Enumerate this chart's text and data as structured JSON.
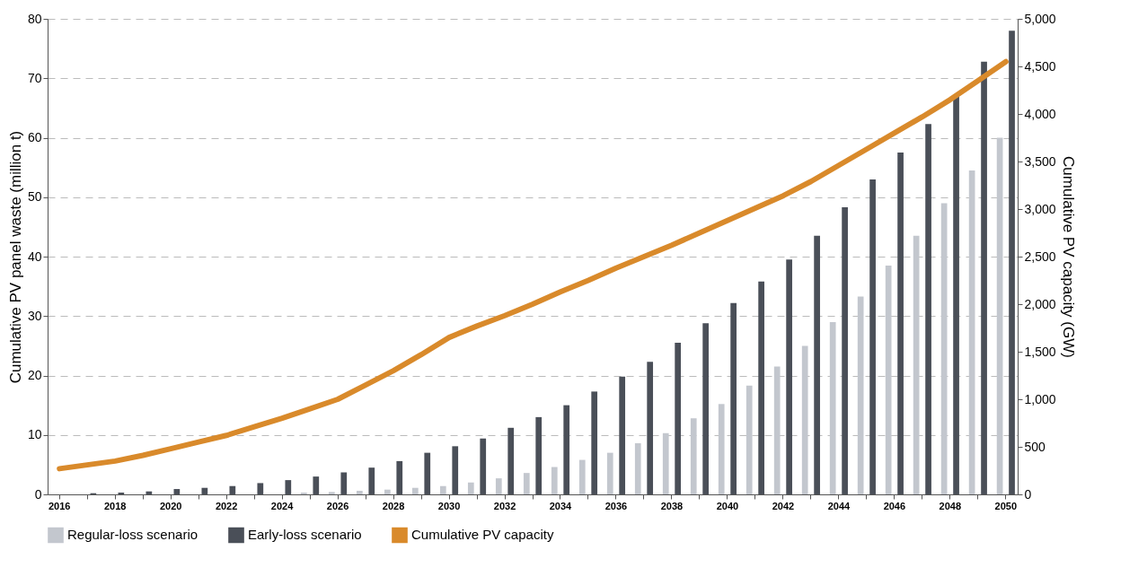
{
  "chart_data": {
    "type": "bar",
    "categories": [
      "2016",
      null,
      "2018",
      null,
      "2020",
      null,
      "2022",
      null,
      "2024",
      null,
      "2026",
      null,
      "2028",
      null,
      "2030",
      null,
      "2032",
      null,
      "2034",
      null,
      "2036",
      null,
      "2038",
      null,
      "2040",
      null,
      "2042",
      null,
      "2044",
      null,
      "2046",
      null,
      "2048",
      null,
      "2050"
    ],
    "series": [
      {
        "name": "Regular-loss scenario",
        "color": "#c3c7ce",
        "values": [
          0,
          0,
          0,
          0,
          null,
          null,
          null,
          null,
          null,
          0.3,
          0.4,
          0.6,
          0.8,
          1.1,
          1.4,
          2.0,
          2.7,
          3.6,
          4.6,
          5.8,
          7.0,
          8.6,
          10.3,
          12.8,
          15.2,
          18.3,
          21.5,
          25,
          29,
          33.3,
          38.5,
          43.5,
          49,
          54.5,
          60
        ]
      },
      {
        "name": "Early-loss scenario",
        "color": "#4a4f58",
        "values": [
          null,
          0.2,
          0.3,
          0.5,
          0.9,
          1.1,
          1.4,
          1.9,
          2.4,
          3.0,
          3.7,
          4.5,
          5.6,
          7.0,
          8.1,
          9.4,
          11.2,
          13.0,
          15.0,
          17.3,
          19.8,
          22.3,
          25.5,
          28.8,
          32.2,
          35.8,
          39.5,
          43.5,
          48.3,
          53,
          57.5,
          62.3,
          67,
          72.8,
          78
        ]
      },
      {
        "name": "Cumulative PV capacity",
        "type": "line",
        "axis": "y2",
        "color": "#d98a2b",
        "values": [
          270,
          310,
          350,
          410,
          480,
          550,
          620,
          710,
          800,
          900,
          1000,
          1150,
          1300,
          1470,
          1650,
          1770,
          1880,
          2000,
          2130,
          2250,
          2380,
          2500,
          2620,
          2750,
          2880,
          3010,
          3140,
          3290,
          3460,
          3630,
          3800,
          3970,
          4150,
          4350,
          4550
        ]
      }
    ],
    "ylabel": "Cumulative PV panel waste (million t)",
    "y2label": "Cumulative PV capacity (GW)",
    "ylim": [
      0,
      80
    ],
    "yticks": [
      0,
      10,
      20,
      30,
      40,
      50,
      60,
      70,
      80
    ],
    "y2lim": [
      0,
      5000
    ],
    "y2ticks": [
      0,
      500,
      {
        "value": 1000,
        "label": "1,000"
      },
      {
        "value": 1500,
        "label": "1,500"
      },
      {
        "value": 2000,
        "label": "2,000"
      },
      {
        "value": 2500,
        "label": "2,500"
      },
      {
        "value": 3000,
        "label": "3,000"
      },
      {
        "value": 3500,
        "label": "3,500"
      },
      {
        "value": 4000,
        "label": "4,000"
      },
      {
        "value": 4500,
        "label": "4,500"
      },
      {
        "value": 5000,
        "label": "5,000"
      }
    ],
    "grid": "y",
    "legend": "bottom",
    "line_style": "solid"
  }
}
